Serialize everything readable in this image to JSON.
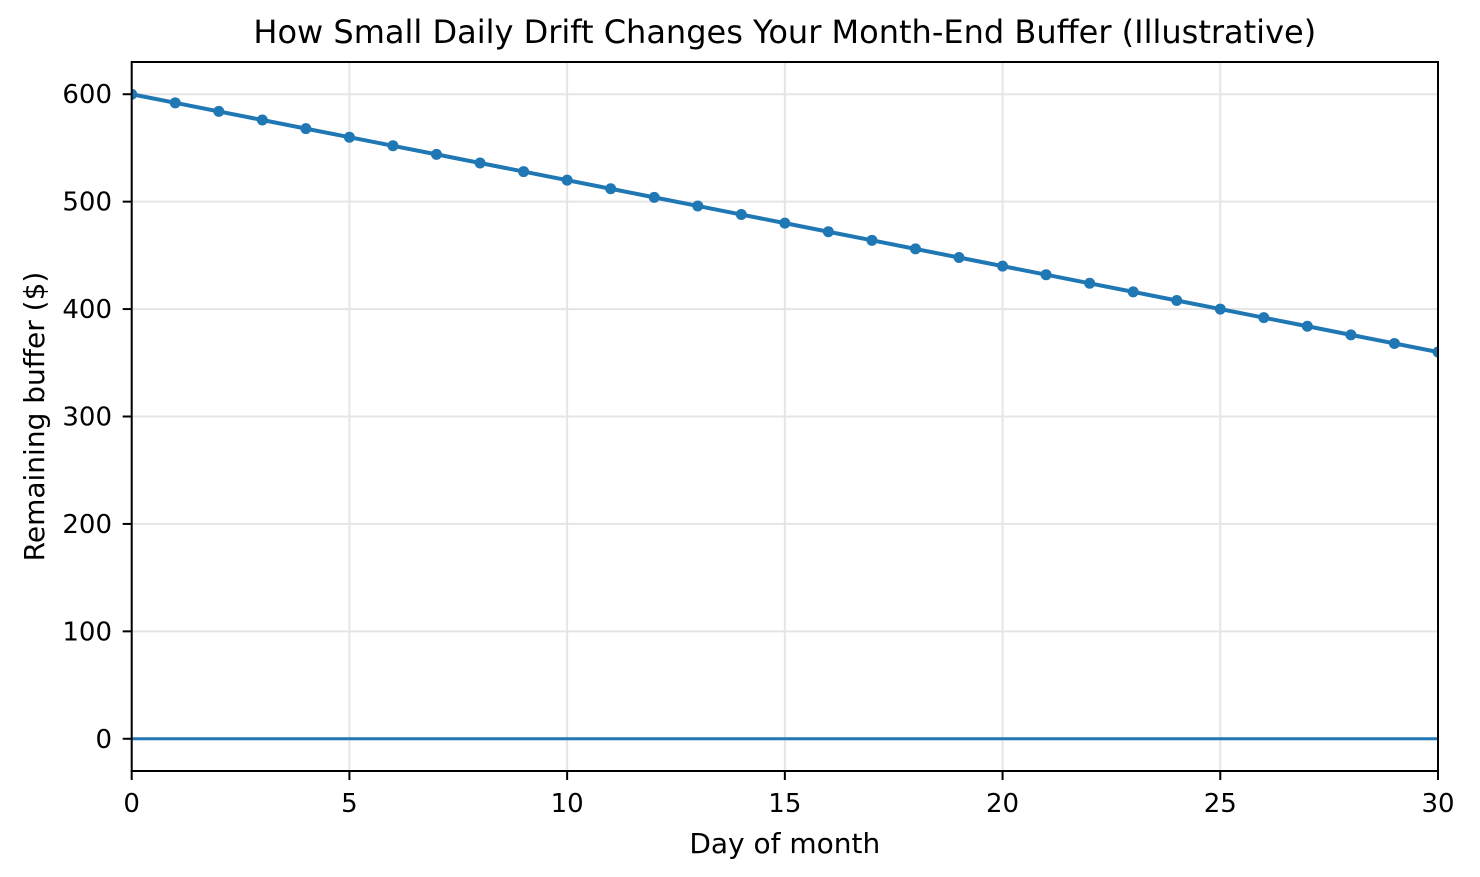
{
  "page": {
    "background": "#ffffff"
  },
  "chart_data": {
    "type": "line",
    "title": "How Small Daily Drift Changes Your Month-End Buffer (Illustrative)",
    "xlabel": "Day of month",
    "ylabel": "Remaining buffer ($)",
    "x": [
      0,
      1,
      2,
      3,
      4,
      5,
      6,
      7,
      8,
      9,
      10,
      11,
      12,
      13,
      14,
      15,
      16,
      17,
      18,
      19,
      20,
      21,
      22,
      23,
      24,
      25,
      26,
      27,
      28,
      29,
      30
    ],
    "series": [
      {
        "name": "Remaining buffer",
        "values": [
          600,
          592,
          584,
          576,
          568,
          560,
          552,
          544,
          536,
          528,
          520,
          512,
          504,
          496,
          488,
          480,
          472,
          464,
          456,
          448,
          440,
          432,
          424,
          416,
          408,
          400,
          392,
          384,
          376,
          368,
          360
        ],
        "color": "#1f77b4",
        "marker": "circle"
      }
    ],
    "reference_lines": [
      {
        "orientation": "horizontal",
        "value": 0,
        "color": "#1f77b4"
      }
    ],
    "xlim": [
      0,
      30
    ],
    "ylim": [
      -30,
      630
    ],
    "xticks": [
      0,
      5,
      10,
      15,
      20,
      25,
      30
    ],
    "yticks": [
      0,
      100,
      200,
      300,
      400,
      500,
      600
    ],
    "grid": true,
    "legend": "none"
  },
  "style": {
    "line_color": "#1f77b4",
    "grid_color": "#e5e5e5",
    "axis_color": "#000000",
    "text_color": "#000000",
    "background_color": "#ffffff"
  }
}
